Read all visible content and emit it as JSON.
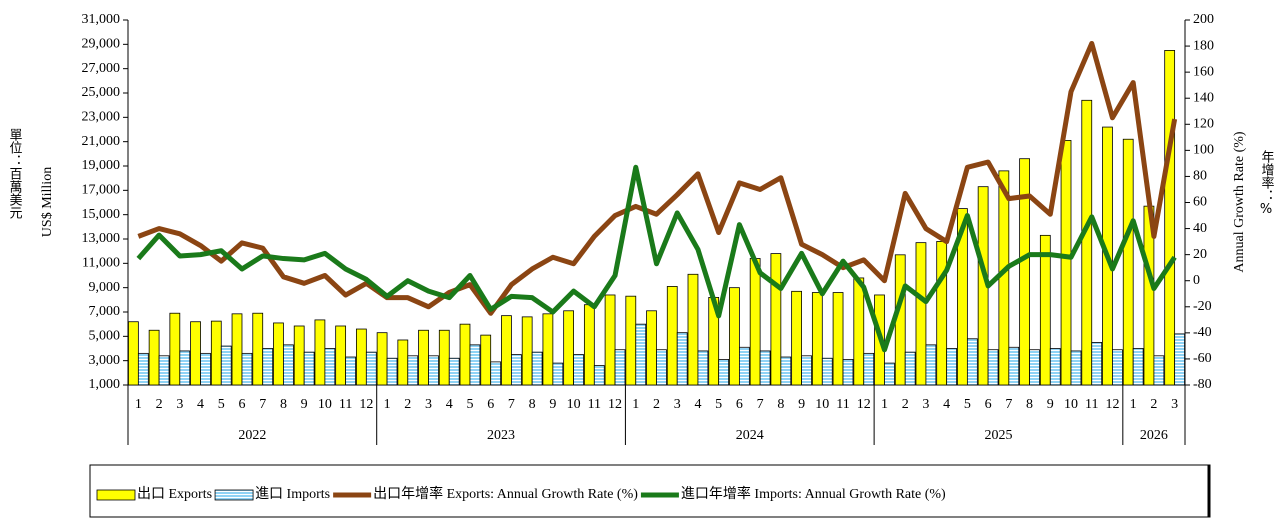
{
  "chart_data": {
    "type": "combo",
    "y_label": "US$ Million",
    "y_label_cn": "單位：百萬美元",
    "y2_label": "Annual Growth Rate (%)",
    "y2_label_cn": "年增率：%",
    "groups": [
      {
        "label": "2022",
        "categories": [
          "1",
          "2",
          "3",
          "4",
          "5",
          "6",
          "7",
          "8",
          "9",
          "10",
          "11",
          "12"
        ]
      },
      {
        "label": "2023",
        "categories": [
          "1",
          "2",
          "3",
          "4",
          "5",
          "6",
          "7",
          "8",
          "9",
          "10",
          "11",
          "12"
        ]
      },
      {
        "label": "2024",
        "categories": [
          "1",
          "2",
          "3",
          "4",
          "5",
          "6",
          "7",
          "8",
          "9",
          "10",
          "11",
          "12"
        ]
      },
      {
        "label": "2025",
        "categories": [
          "1",
          "2",
          "3",
          "4",
          "5",
          "6",
          "7",
          "8",
          "9",
          "10",
          "11",
          "12"
        ]
      },
      {
        "label": "2026",
        "categories": [
          "1",
          "2",
          "3"
        ]
      }
    ],
    "ylim": [
      1000,
      31000
    ],
    "yticks": [
      {
        "value": 1000,
        "label": "1,000"
      },
      {
        "value": 3000,
        "label": "3,000"
      },
      {
        "value": 5000,
        "label": "5,000"
      },
      {
        "value": 7000,
        "label": "7,000"
      },
      {
        "value": 9000,
        "label": "9,000"
      },
      {
        "value": 11000,
        "label": "11,000"
      },
      {
        "value": 13000,
        "label": "13,000"
      },
      {
        "value": 15000,
        "label": "15,000"
      },
      {
        "value": 17000,
        "label": "17,000"
      },
      {
        "value": 19000,
        "label": "19,000"
      },
      {
        "value": 21000,
        "label": "21,000"
      },
      {
        "value": 23000,
        "label": "23,000"
      },
      {
        "value": 25000,
        "label": "25,000"
      },
      {
        "value": 27000,
        "label": "27,000"
      },
      {
        "value": 29000,
        "label": "29,000"
      },
      {
        "value": 31000,
        "label": "31,000"
      }
    ],
    "y2lim": [
      -80,
      200
    ],
    "y2ticks": [
      -80,
      -60,
      -40,
      -20,
      0,
      20,
      40,
      60,
      80,
      100,
      120,
      140,
      160,
      180,
      200
    ],
    "series": [
      {
        "name": "出口 Exports",
        "type": "bar",
        "color": "#ffff00",
        "values": [
          6200,
          5500,
          6900,
          6200,
          6250,
          6850,
          6900,
          6100,
          5850,
          6350,
          5850,
          5600,
          5300,
          4700,
          5500,
          5500,
          6000,
          5100,
          6700,
          6600,
          6850,
          7100,
          7600,
          8400,
          8300,
          7100,
          9100,
          10100,
          8200,
          9000,
          11400,
          11800,
          8700,
          8600,
          8600,
          9800,
          8400,
          11700,
          12700,
          12800,
          15500,
          17300,
          18600,
          19600,
          13300,
          21100,
          24400,
          22200,
          21200,
          15700,
          28500
        ]
      },
      {
        "name": "進口 Imports",
        "type": "bar",
        "color": "#8fd3f5",
        "values": [
          3600,
          3400,
          3800,
          3600,
          4200,
          3600,
          4000,
          4300,
          3700,
          4000,
          3300,
          3700,
          3200,
          3400,
          3400,
          3200,
          4300,
          2900,
          3500,
          3700,
          2800,
          3500,
          2600,
          3900,
          6000,
          3900,
          5300,
          3800,
          3100,
          4100,
          3800,
          3300,
          3400,
          3200,
          3100,
          3600,
          2800,
          3700,
          4300,
          4000,
          4800,
          3900,
          4100,
          3900,
          4000,
          3800,
          4500,
          3900,
          4000,
          3400,
          5200
        ]
      },
      {
        "name": "出口年增率 Exports: Annual Growth Rate (%)",
        "type": "line",
        "axis": "y2",
        "color": "#8b4513",
        "values": [
          34,
          40,
          36,
          27,
          15,
          29,
          25,
          3,
          -2,
          4,
          -11,
          -2,
          -13,
          -13,
          -20,
          -9,
          -3,
          -25,
          -3,
          9,
          18,
          13,
          34,
          50,
          57,
          51,
          66,
          82,
          37,
          75,
          70,
          79,
          28,
          20,
          10,
          16,
          0,
          67,
          40,
          30,
          87,
          91,
          63,
          65,
          51,
          145,
          182,
          125,
          152,
          34,
          124
        ]
      },
      {
        "name": "進口年增率 Imports: Annual Growth Rate (%)",
        "type": "line",
        "axis": "y2",
        "color": "#1a7a1a",
        "values": [
          17,
          35,
          19,
          20,
          23,
          9,
          19,
          17,
          16,
          21,
          9,
          1,
          -12,
          0,
          -8,
          -13,
          4,
          -22,
          -12,
          -13,
          -24,
          -8,
          -20,
          4,
          87,
          13,
          52,
          24,
          -27,
          43,
          6,
          -6,
          21,
          -10,
          15,
          -5,
          -53,
          -4,
          -16,
          8,
          50,
          -4,
          11,
          20,
          20,
          18,
          49,
          9,
          46,
          -6,
          18
        ]
      }
    ]
  }
}
